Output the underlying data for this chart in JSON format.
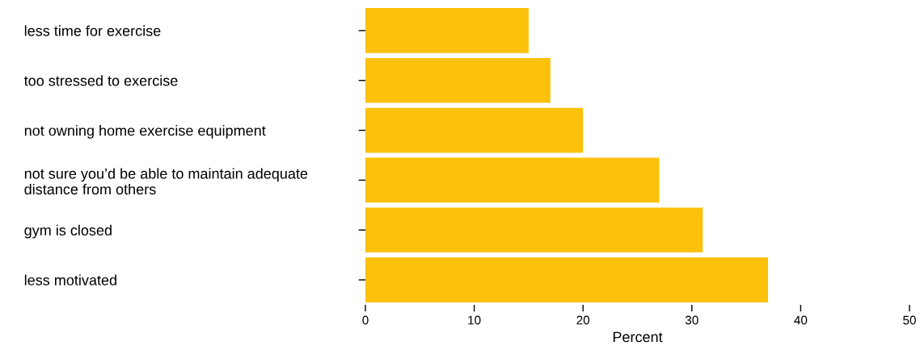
{
  "chart_data": {
    "type": "bar",
    "orientation": "horizontal",
    "xlabel": "Percent",
    "categories": [
      "less time for exercise",
      "too stressed to exercise",
      "not owning home exercise equipment",
      "not sure you’d be able to maintain adequate\ndistance from others",
      "gym is closed",
      "less motivated"
    ],
    "values": [
      15,
      17,
      20,
      27,
      31,
      37
    ],
    "color": "#fcc10a",
    "xlim": [
      0,
      50
    ],
    "xticks": [
      0,
      10,
      20,
      30,
      40,
      50
    ],
    "grid": false,
    "legend": false
  }
}
